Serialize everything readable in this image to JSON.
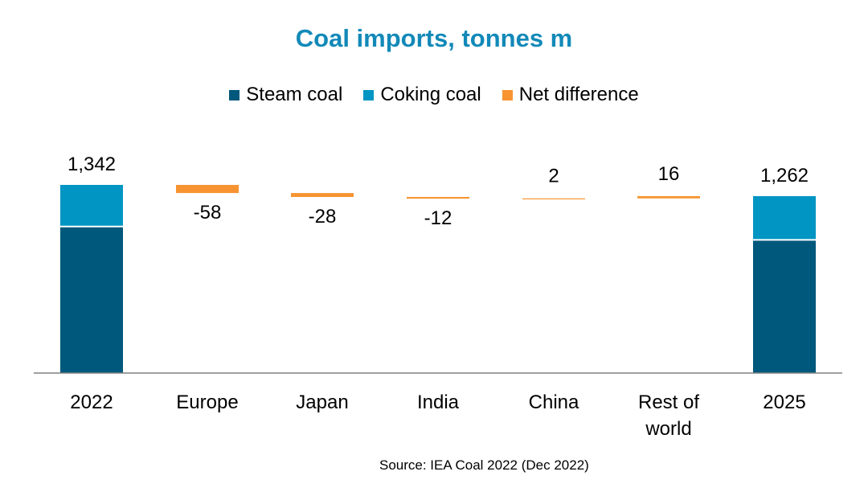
{
  "colors": {
    "title": "#1289b8",
    "steam": "#00587c",
    "coking": "#0095c2",
    "net": "#f79431",
    "axis": "#808080",
    "text": "#000000"
  },
  "source": "Source: IEA Coal 2022 (Dec 2022)",
  "chart_data": {
    "type": "bar",
    "subtype": "waterfall",
    "title": "Coal imports, tonnes  m",
    "legend": [
      "Steam coal",
      "Coking coal",
      "Net difference"
    ],
    "legend_placement": "top",
    "grid": false,
    "ylim": [
      0,
      1400
    ],
    "categories": [
      "2022",
      "Europe",
      "Japan",
      "India",
      "China",
      "Rest of world",
      "2025"
    ],
    "category_lines": [
      [
        "2022"
      ],
      [
        "Europe"
      ],
      [
        "Japan"
      ],
      [
        "India"
      ],
      [
        "China"
      ],
      [
        "Rest of",
        "world"
      ],
      [
        "2025"
      ]
    ],
    "totals": [
      {
        "category": "2022",
        "steam": 1045,
        "coking": 297,
        "total": 1342,
        "label": "1,342"
      },
      {
        "category": "2025",
        "steam": 950,
        "coking": 312,
        "total": 1262,
        "label": "1,262"
      }
    ],
    "net_difference": [
      {
        "category": "Europe",
        "value": -58,
        "label": "-58"
      },
      {
        "category": "Japan",
        "value": -28,
        "label": "-28"
      },
      {
        "category": "India",
        "value": -12,
        "label": "-12"
      },
      {
        "category": "China",
        "value": 2,
        "label": "2"
      },
      {
        "category": "Rest of world",
        "value": 16,
        "label": "16"
      }
    ]
  }
}
